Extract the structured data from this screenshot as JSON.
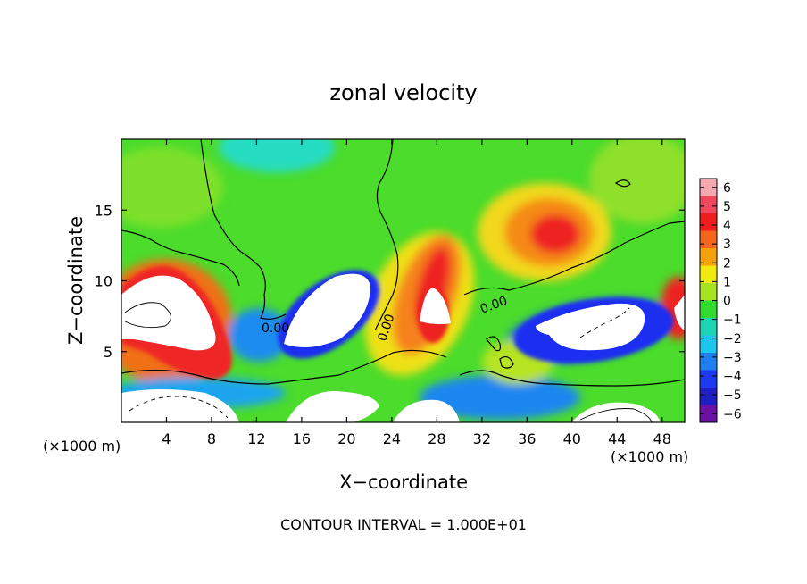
{
  "chart_data": {
    "type": "heatmap",
    "title": "zonal velocity",
    "xlabel": "X−coordinate",
    "ylabel": "Z−coordinate",
    "x_unit_label_left": "(×1000 m)",
    "x_unit_label_right": "(×1000 m)",
    "xlim": [
      0,
      50
    ],
    "ylim": [
      0,
      20
    ],
    "x_ticks": [
      4,
      8,
      12,
      16,
      20,
      24,
      28,
      32,
      36,
      40,
      44,
      48
    ],
    "y_ticks": [
      5,
      10,
      15
    ],
    "colorbar": {
      "min": -6,
      "max": 6,
      "tick_labels": [
        "6",
        "5",
        "4",
        "3",
        "2",
        "1",
        "0",
        "−1",
        "−2",
        "−3",
        "−4",
        "−5",
        "−6"
      ],
      "colors": [
        "#f4a8b0",
        "#f0485c",
        "#ef1d1d",
        "#f5661c",
        "#f5a00c",
        "#f1ea0e",
        "#a6e322",
        "#32dc2e",
        "#1bd5b4",
        "#1cc6ec",
        "#1d7ff0",
        "#1b3af1",
        "#1f1fc4",
        "#6a12a8"
      ]
    },
    "contour_labels": [
      "0.00",
      "0.00",
      "0.00"
    ],
    "footer": "CONTOUR INTERVAL = 1.000E+01",
    "field_regions": [
      {
        "label": "background",
        "value": 0.8
      },
      {
        "label": "upper-left-top",
        "value": 1.0
      },
      {
        "label": "upper-cyan",
        "value": -1.6
      },
      {
        "label": "right-upper",
        "value": 0.8
      },
      {
        "label": "upper-right-jet",
        "value": 5.0
      },
      {
        "label": "jet-tilted-core",
        "value": 4.0
      },
      {
        "label": "left-edge-jet",
        "value": 5.0
      },
      {
        "label": "blue-near-16",
        "value": -3.0
      },
      {
        "label": "blue-lens-20",
        "value": -4.5
      },
      {
        "label": "blue-right-40",
        "value": -4.0
      },
      {
        "label": "blue-band-bottom",
        "value": -3.0
      },
      {
        "label": "right-edge-red",
        "value": 5.0
      }
    ],
    "clipped_regions": [
      {
        "label": "white-left",
        "value": 6.5
      },
      {
        "label": "white-mid-20",
        "value": -6.5
      },
      {
        "label": "white-28",
        "value": 6.5
      },
      {
        "label": "white-right-40",
        "value": -6.5
      },
      {
        "label": "white-bottom-left",
        "value": -6.5
      },
      {
        "label": "white-bottom-mid",
        "value": 6.5
      },
      {
        "label": "white-bottom-right",
        "value": 6.5
      }
    ]
  }
}
